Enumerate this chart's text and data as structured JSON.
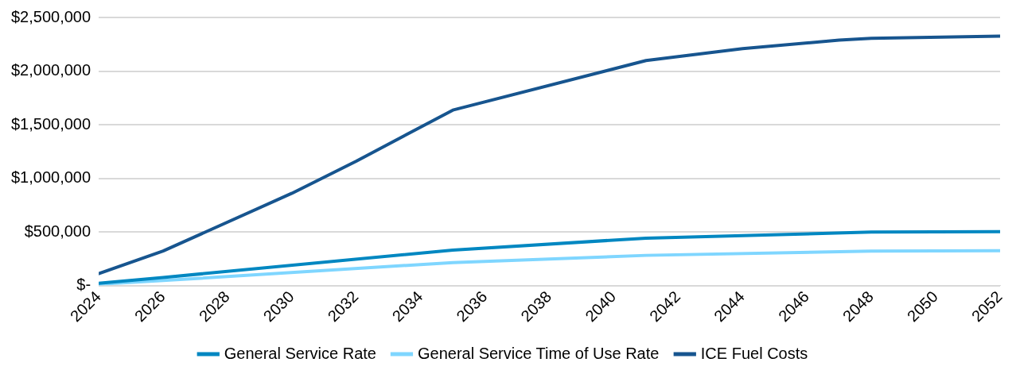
{
  "chart_data": {
    "type": "line",
    "xlim": [
      2024,
      2052
    ],
    "xticks": [
      2024,
      2026,
      2028,
      2030,
      2032,
      2034,
      2036,
      2038,
      2040,
      2042,
      2044,
      2046,
      2048,
      2050,
      2052
    ],
    "ylim": [
      0,
      2500000
    ],
    "yticks": [
      {
        "value": 0,
        "label": "$-"
      },
      {
        "value": 500000,
        "label": "$500,000"
      },
      {
        "value": 1000000,
        "label": "$1,000,000"
      },
      {
        "value": 1500000,
        "label": "$1,500,000"
      },
      {
        "value": 2000000,
        "label": "$2,000,000"
      },
      {
        "value": 2500000,
        "label": "$2,500,000"
      }
    ],
    "grid": "y",
    "legend": "bottom",
    "marker": "none",
    "line_style": "solid",
    "series": [
      {
        "name": "General Service Rate",
        "color": "#0087c1",
        "x": [
          2024,
          2026,
          2035,
          2041,
          2048,
          2052
        ],
        "values": [
          20000,
          75000,
          330000,
          442000,
          498000,
          502000
        ]
      },
      {
        "name": "General Service Time of Use Rate",
        "color": "#7fd6ff",
        "x": [
          2024,
          2026,
          2035,
          2041,
          2048,
          2052
        ],
        "values": [
          12000,
          46000,
          214000,
          281000,
          321000,
          325000
        ]
      },
      {
        "name": "ICE Fuel Costs",
        "color": "#17558f",
        "x": [
          2024,
          2026,
          2030,
          2032,
          2035,
          2041,
          2044,
          2047,
          2048,
          2052
        ],
        "values": [
          111000,
          322000,
          860000,
          1160000,
          1636000,
          2098000,
          2209000,
          2289000,
          2306000,
          2326000
        ]
      }
    ]
  }
}
